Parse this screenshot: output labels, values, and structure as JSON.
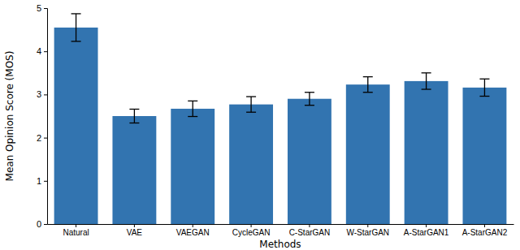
{
  "chart_data": {
    "type": "bar",
    "x_label": "Methods",
    "y_label": "Mean Opinion Score (MOS)",
    "categories": [
      "Natural",
      "VAE",
      "VAEGAN",
      "CycleGAN",
      "C-StarGAN",
      "W-StarGAN",
      "A-StarGAN1",
      "A-StarGAN2"
    ],
    "values": [
      4.55,
      2.5,
      2.67,
      2.77,
      2.9,
      3.23,
      3.31,
      3.16
    ],
    "errors": [
      0.32,
      0.16,
      0.18,
      0.18,
      0.15,
      0.18,
      0.19,
      0.2
    ],
    "color": "#3274b0",
    "ylim": [
      0,
      5
    ],
    "yticks": [
      0,
      1,
      2,
      3,
      4,
      5
    ],
    "grid": false
  }
}
